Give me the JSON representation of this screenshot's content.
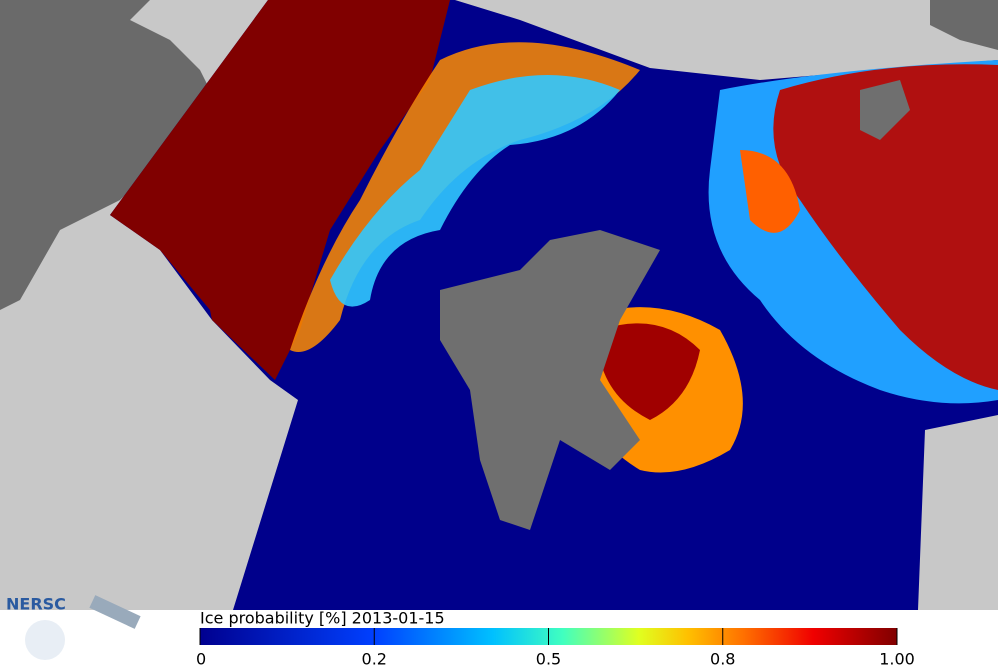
{
  "logo": "NERSC",
  "colorbar": {
    "title": "Ice probability [%] 2013-01-15",
    "ticks": [
      0,
      0.2,
      0.5,
      0.8,
      {
        "value": 1,
        "label": "1.00"
      }
    ]
  }
}
